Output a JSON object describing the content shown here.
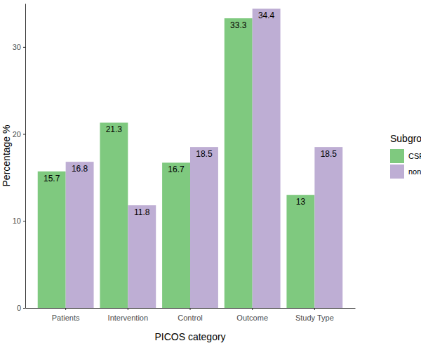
{
  "chart_data": {
    "type": "bar",
    "x_label": "PICOS category",
    "y_label": "Percentage %",
    "legend_title": "Subgroup",
    "legend": "right",
    "categories": [
      "Patients",
      "Intervention",
      "Control",
      "Outcome",
      "Study Type"
    ],
    "series": [
      {
        "name": "CSR",
        "color": "#7fc97f",
        "values": [
          15.7,
          21.3,
          16.7,
          33.3,
          13
        ]
      },
      {
        "name": "non-CSR",
        "color": "#beaed4",
        "values": [
          16.8,
          11.8,
          18.5,
          34.4,
          18.5
        ]
      }
    ],
    "ylim": [
      0,
      35
    ],
    "yticks": [
      0,
      10,
      20,
      30
    ],
    "grid": false,
    "data_labels": true
  }
}
